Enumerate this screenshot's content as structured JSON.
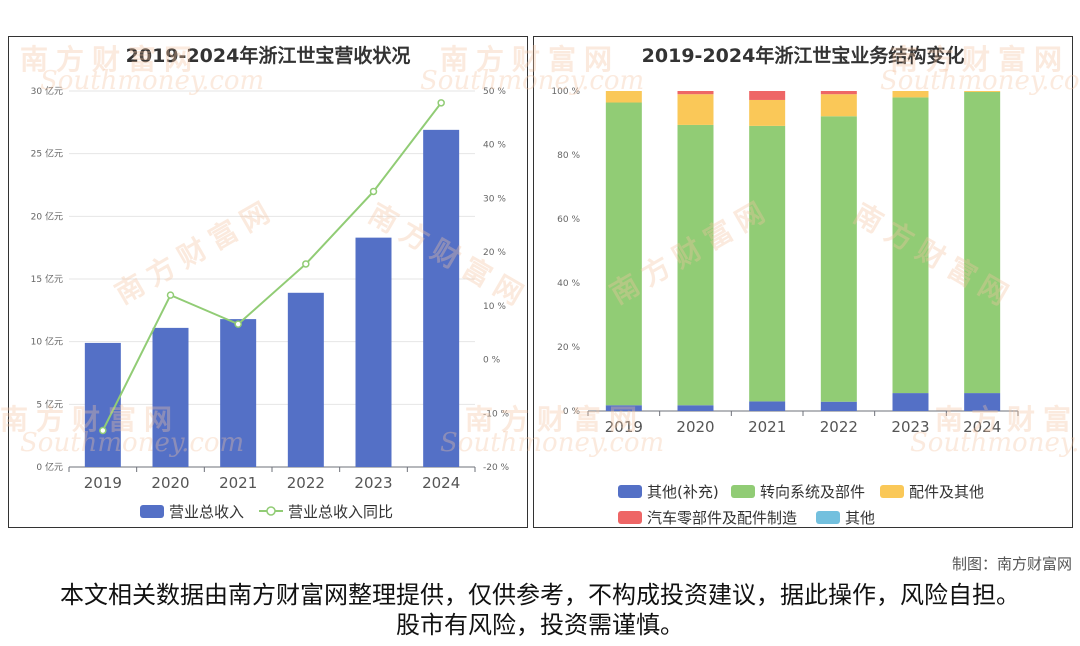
{
  "watermark": {
    "cn": "南方财富网",
    "en": "Southmoney.com"
  },
  "left_chart": {
    "title": "2019-2024年浙江世宝营收状况",
    "legend": [
      "营业总收入",
      "营业总收入同比"
    ]
  },
  "right_chart": {
    "title": "2019-2024年浙江世宝业务结构变化",
    "legend": [
      "其他(补充)",
      "转向系统及部件",
      "配件及其他",
      "汽车零部件及配件制造",
      "其他"
    ]
  },
  "credit": "制图：南方财富网",
  "disclaimer": "本文相关数据由南方财富网整理提供，仅供参考，不构成投资建议，据此操作，风险自担。股市有风险，投资需谨慎。",
  "chart_data": [
    {
      "type": "bar",
      "title": "2019-2024年浙江世宝营收状况",
      "categories": [
        "2019",
        "2020",
        "2021",
        "2022",
        "2023",
        "2024"
      ],
      "series": [
        {
          "name": "营业总收入",
          "type": "bar",
          "axis": "left",
          "color": "#5470c6",
          "values": [
            9.9,
            11.1,
            11.8,
            13.9,
            18.3,
            26.9
          ]
        },
        {
          "name": "营业总收入同比",
          "type": "line",
          "axis": "right",
          "color": "#91cc75",
          "values": [
            -13.2,
            12.0,
            6.6,
            17.8,
            31.3,
            47.8
          ]
        }
      ],
      "y_left": {
        "min": 0,
        "max": 30,
        "step": 5,
        "unit": "亿元"
      },
      "y_right": {
        "min": -20,
        "max": 50,
        "step": 10,
        "unit": "%"
      },
      "grid": true,
      "legend_position": "bottom"
    },
    {
      "type": "bar",
      "stacked": true,
      "title": "2019-2024年浙江世宝业务结构变化",
      "categories": [
        "2019",
        "2020",
        "2021",
        "2022",
        "2023",
        "2024"
      ],
      "series": [
        {
          "name": "其他(补充)",
          "color": "#5470c6",
          "values": [
            1.8,
            1.8,
            3.0,
            2.9,
            5.6,
            5.6
          ]
        },
        {
          "name": "转向系统及部件",
          "color": "#91cc75",
          "values": [
            94.6,
            87.6,
            86.1,
            89.2,
            92.4,
            94.1
          ]
        },
        {
          "name": "配件及其他",
          "color": "#fac858",
          "values": [
            3.6,
            9.6,
            8.1,
            6.9,
            2.0,
            0.3
          ]
        },
        {
          "name": "汽车零部件及配件制造",
          "color": "#ee6666",
          "values": [
            0.0,
            1.0,
            2.8,
            1.0,
            0.0,
            0.0
          ]
        },
        {
          "name": "其他",
          "color": "#73c0de",
          "values": [
            0,
            0,
            0,
            0,
            0,
            0
          ]
        }
      ],
      "y": {
        "min": 0,
        "max": 100,
        "step": 20,
        "unit": "%"
      },
      "grid": false,
      "legend_position": "bottom"
    }
  ]
}
